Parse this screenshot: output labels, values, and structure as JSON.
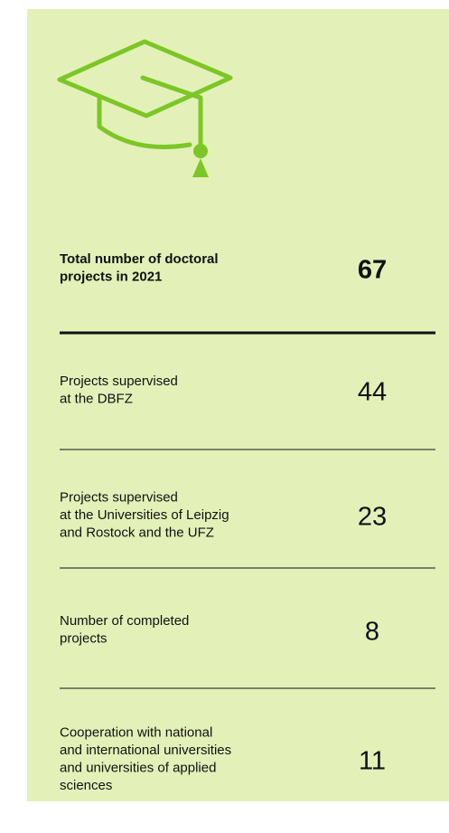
{
  "rows": [
    {
      "label": [
        "Total number of doctoral",
        "projects in 2021"
      ],
      "value": 67
    },
    {
      "label": [
        "Projects supervised",
        "at the DBFZ"
      ],
      "value": 44
    },
    {
      "label": [
        "Projects supervised",
        "at the Universities of Leipzig",
        "and Rostock and the UFZ"
      ],
      "value": 23
    },
    {
      "label": [
        "Number of completed",
        "projects"
      ],
      "value": 8
    },
    {
      "label": [
        "Cooperation with national",
        "and international universities",
        "and universities of applied",
        "sciences"
      ],
      "value": 11
    }
  ]
}
